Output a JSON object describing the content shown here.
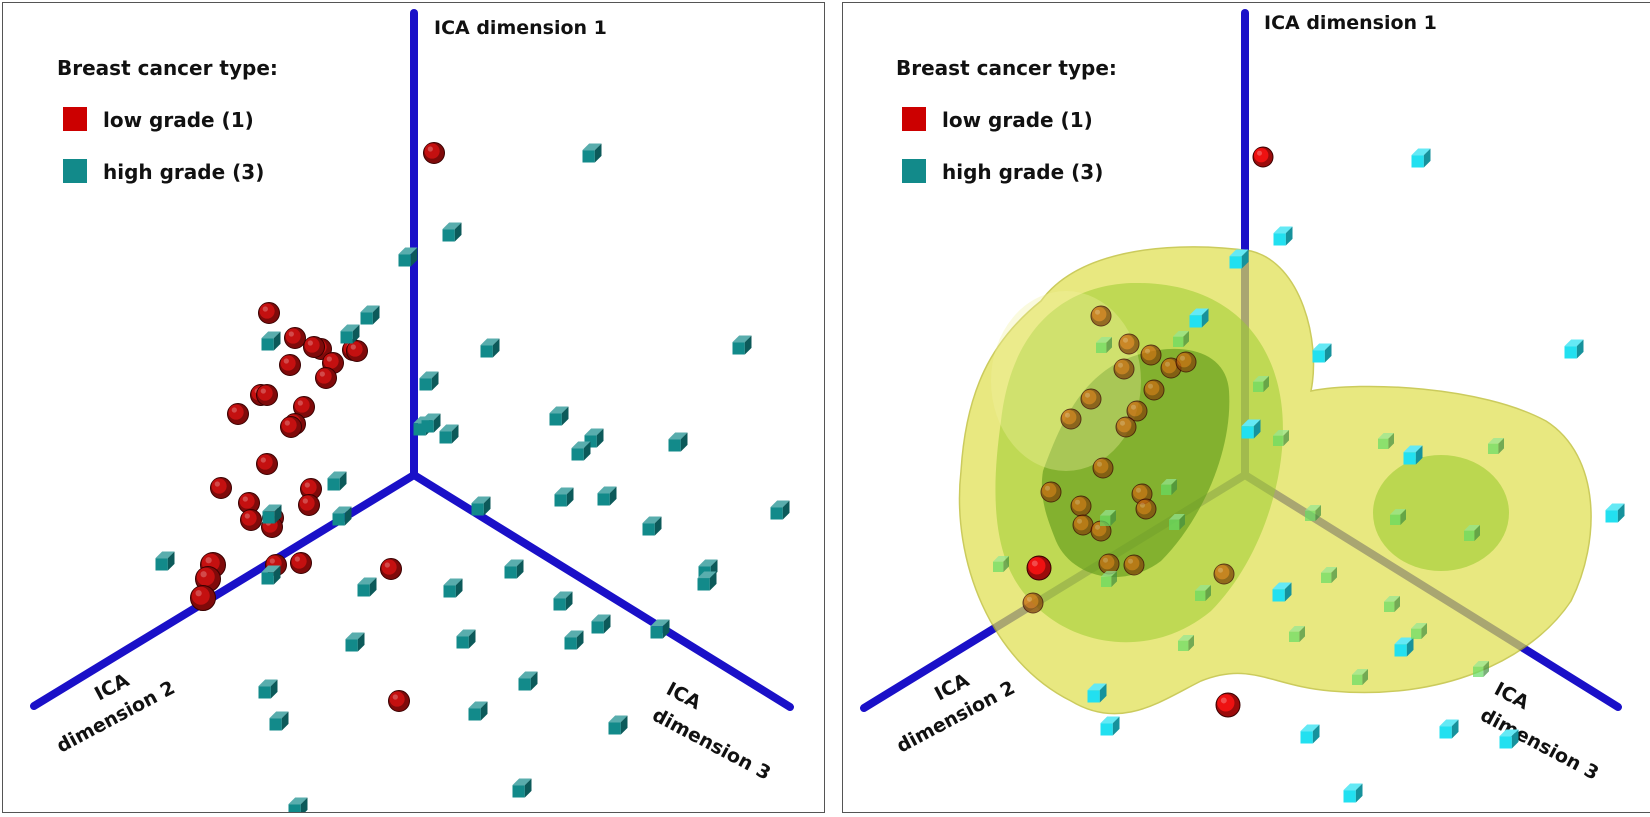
{
  "legend": {
    "title": "Breast cancer type:",
    "entries": [
      {
        "label": "low grade (1)",
        "color": "#cc0000"
      },
      {
        "label": "high grade (3)",
        "color": "#128a8a"
      }
    ]
  },
  "axes": {
    "dim1": "ICA dimension 1",
    "dim2_line1": "ICA",
    "dim2_line2": "dimension 2",
    "dim3_line1": "ICA",
    "dim3_line2": "dimension 3"
  },
  "colors": {
    "axis": "#1a10c8",
    "low_grade_left": "#c41010",
    "high_grade_left": "#128a8a",
    "low_grade_right": "#ee1111",
    "high_grade_right": "#22e0f0",
    "density_surface": "#e0e050",
    "density_core": "#6aa020"
  },
  "chart_data": [
    {
      "type": "scatter",
      "panel": "left",
      "series": [
        {
          "name": "low grade (1)",
          "points": [
            [
              433,
              152
            ],
            [
              268,
              312
            ],
            [
              294,
              337
            ],
            [
              320,
              348
            ],
            [
              352,
              349
            ],
            [
              356,
              350
            ],
            [
              313,
              346
            ],
            [
              332,
              362
            ],
            [
              289,
              364
            ],
            [
              325,
              377
            ],
            [
              260,
              394
            ],
            [
              266,
              394
            ],
            [
              303,
              406
            ],
            [
              294,
              423
            ],
            [
              237,
              413
            ],
            [
              290,
              426
            ],
            [
              266,
              463
            ],
            [
              220,
              487
            ],
            [
              310,
              488
            ],
            [
              248,
              502
            ],
            [
              308,
              504
            ],
            [
              250,
              519
            ],
            [
              272,
              517
            ],
            [
              271,
              526
            ],
            [
              212,
              564
            ],
            [
              207,
              578
            ],
            [
              202,
              597
            ],
            [
              275,
              564
            ],
            [
              300,
              562
            ],
            [
              390,
              568
            ],
            [
              398,
              700
            ]
          ]
        },
        {
          "name": "high grade (3)",
          "points": [
            [
              591,
              152
            ],
            [
              451,
              231
            ],
            [
              407,
              256
            ],
            [
              369,
              314
            ],
            [
              349,
              333
            ],
            [
              270,
              340
            ],
            [
              489,
              347
            ],
            [
              741,
              344
            ],
            [
              428,
              380
            ],
            [
              558,
              415
            ],
            [
              422,
              425
            ],
            [
              430,
              422
            ],
            [
              593,
              437
            ],
            [
              448,
              433
            ],
            [
              580,
              450
            ],
            [
              677,
              441
            ],
            [
              336,
              480
            ],
            [
              563,
              496
            ],
            [
              606,
              495
            ],
            [
              480,
              505
            ],
            [
              341,
              515
            ],
            [
              271,
              513
            ],
            [
              651,
              525
            ],
            [
              779,
              509
            ],
            [
              164,
              560
            ],
            [
              513,
              568
            ],
            [
              270,
              574
            ],
            [
              707,
              568
            ],
            [
              366,
              586
            ],
            [
              706,
              580
            ],
            [
              452,
              587
            ],
            [
              562,
              600
            ],
            [
              600,
              623
            ],
            [
              659,
              628
            ],
            [
              354,
              641
            ],
            [
              465,
              638
            ],
            [
              573,
              639
            ],
            [
              527,
              680
            ],
            [
              267,
              688
            ],
            [
              278,
              720
            ],
            [
              477,
              710
            ],
            [
              617,
              724
            ],
            [
              521,
              787
            ],
            [
              297,
              806
            ]
          ]
        }
      ]
    },
    {
      "type": "scatter",
      "panel": "right",
      "series": [
        {
          "name": "low grade (1)",
          "points": [
            [
              1262,
              156
            ],
            [
              1038,
              567
            ],
            [
              1227,
              704
            ]
          ]
        },
        {
          "name": "high grade (3)",
          "points": [
            [
              1420,
              157
            ],
            [
              1282,
              235
            ],
            [
              1238,
              258
            ],
            [
              1198,
              317
            ],
            [
              1321,
              352
            ],
            [
              1573,
              348
            ],
            [
              1250,
              428
            ],
            [
              1412,
              454
            ],
            [
              1614,
              512
            ],
            [
              1508,
              738
            ],
            [
              1448,
              728
            ],
            [
              1309,
              733
            ],
            [
              1109,
              725
            ],
            [
              1096,
              692
            ],
            [
              1281,
              591
            ],
            [
              1403,
              646
            ],
            [
              1352,
              792
            ]
          ]
        }
      ]
    }
  ]
}
